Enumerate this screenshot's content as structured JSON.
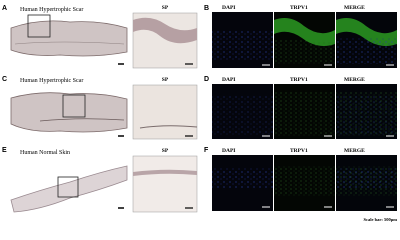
{
  "panels": [
    {
      "letter": "A",
      "label": "Human Hypertrophic Scar",
      "inset_label": "SP"
    },
    {
      "letter": "C",
      "label": "Human Hypertrophic Scar",
      "inset_label": "SP"
    },
    {
      "letter": "E",
      "label": "Human Normal Skin",
      "inset_label": "SP"
    }
  ],
  "fluorescence": [
    {
      "letter": "B",
      "channels": [
        "DAPI",
        "TRPV1",
        "MERGE"
      ]
    },
    {
      "letter": "D",
      "channels": [
        "DAPI",
        "TRPV1",
        "MERGE"
      ]
    },
    {
      "letter": "F",
      "channels": [
        "DAPI",
        "TRPV1",
        "MERGE"
      ]
    }
  ],
  "scale_bar": "Scale bar: 500μm"
}
